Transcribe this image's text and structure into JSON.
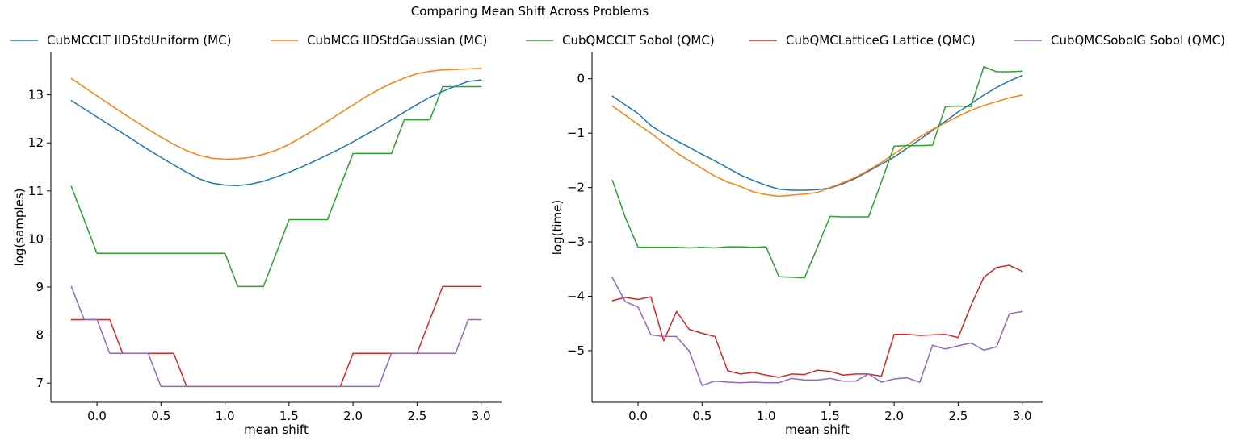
{
  "figure": {
    "suptitle": "Comparing Mean Shift Across Problems"
  },
  "legend": {
    "placement": "top",
    "entries": [
      {
        "label": "CubMCCLT IIDStdUniform (MC)",
        "color": "#1f77b4"
      },
      {
        "label": "CubMCG IIDStdGaussian (MC)",
        "color": "#ff7f0e"
      },
      {
        "label": "CubQMCCLT Sobol (QMC)",
        "color": "#2ca02c"
      },
      {
        "label": "CubQMCLatticeG Lattice (QMC)",
        "color": "#d62728"
      },
      {
        "label": "CubQMCSobolG Sobol (QMC)",
        "color": "#9467bd"
      }
    ]
  },
  "chart_data": [
    {
      "type": "line",
      "title": "",
      "xlabel": "mean shift",
      "ylabel": "log(samples)",
      "xlim": [
        -0.36,
        3.16
      ],
      "ylim": [
        6.6,
        13.9
      ],
      "xticks": [
        0.0,
        0.5,
        1.0,
        1.5,
        2.0,
        2.5,
        3.0
      ],
      "xtick_labels": [
        "0.0",
        "0.5",
        "1.0",
        "1.5",
        "2.0",
        "2.5",
        "3.0"
      ],
      "yticks": [
        7,
        8,
        9,
        10,
        11,
        12,
        13
      ],
      "ytick_labels": [
        "7",
        "8",
        "9",
        "10",
        "11",
        "12",
        "13"
      ],
      "grid": false,
      "x": [
        -0.2,
        -0.1,
        0.0,
        0.1,
        0.2,
        0.3,
        0.4,
        0.5,
        0.6,
        0.7,
        0.8,
        0.9,
        1.0,
        1.1,
        1.2,
        1.3,
        1.4,
        1.5,
        1.6,
        1.7,
        1.8,
        1.9,
        2.0,
        2.1,
        2.2,
        2.3,
        2.4,
        2.5,
        2.6,
        2.7,
        2.8,
        2.9,
        3.0
      ],
      "series": [
        {
          "name": "CubMCCLT IIDStdUniform (MC)",
          "color": "#1f77b4",
          "values": [
            12.88,
            12.71,
            12.54,
            12.37,
            12.2,
            12.03,
            11.86,
            11.7,
            11.54,
            11.39,
            11.25,
            11.16,
            11.12,
            11.11,
            11.14,
            11.2,
            11.29,
            11.39,
            11.5,
            11.62,
            11.75,
            11.88,
            12.02,
            12.17,
            12.32,
            12.48,
            12.64,
            12.8,
            12.95,
            13.07,
            13.18,
            13.28,
            13.31
          ]
        },
        {
          "name": "CubMCG IIDStdGaussian (MC)",
          "color": "#ff7f0e",
          "values": [
            13.34,
            13.16,
            12.98,
            12.8,
            12.62,
            12.45,
            12.28,
            12.12,
            11.97,
            11.84,
            11.74,
            11.68,
            11.66,
            11.67,
            11.7,
            11.76,
            11.85,
            11.97,
            12.12,
            12.28,
            12.45,
            12.62,
            12.79,
            12.96,
            13.11,
            13.24,
            13.35,
            13.44,
            13.49,
            13.52,
            13.53,
            13.54,
            13.55
          ]
        },
        {
          "name": "CubQMCCLT Sobol (QMC)",
          "color": "#2ca02c",
          "values": [
            11.09,
            10.4,
            9.7,
            9.7,
            9.7,
            9.7,
            9.7,
            9.7,
            9.7,
            9.7,
            9.7,
            9.7,
            9.7,
            9.01,
            9.01,
            9.01,
            9.7,
            10.4,
            10.4,
            10.4,
            10.4,
            11.09,
            11.78,
            11.78,
            11.78,
            11.78,
            12.48,
            12.48,
            12.48,
            13.17,
            13.17,
            13.17,
            13.17
          ]
        },
        {
          "name": "CubQMCLatticeG Lattice (QMC)",
          "color": "#d62728",
          "values": [
            8.32,
            8.32,
            8.32,
            8.32,
            7.62,
            7.62,
            7.62,
            7.62,
            7.62,
            6.93,
            6.93,
            6.93,
            6.93,
            6.93,
            6.93,
            6.93,
            6.93,
            6.93,
            6.93,
            6.93,
            6.93,
            6.93,
            7.62,
            7.62,
            7.62,
            7.62,
            7.62,
            7.62,
            8.32,
            9.01,
            9.01,
            9.01,
            9.01
          ]
        },
        {
          "name": "CubQMCSobolG Sobol (QMC)",
          "color": "#9467bd",
          "values": [
            9.01,
            8.32,
            8.32,
            7.62,
            7.62,
            7.62,
            7.62,
            6.93,
            6.93,
            6.93,
            6.93,
            6.93,
            6.93,
            6.93,
            6.93,
            6.93,
            6.93,
            6.93,
            6.93,
            6.93,
            6.93,
            6.93,
            6.93,
            6.93,
            6.93,
            7.62,
            7.62,
            7.62,
            7.62,
            7.62,
            7.62,
            8.32,
            8.32
          ]
        }
      ]
    },
    {
      "type": "line",
      "title": "",
      "xlabel": "mean shift",
      "ylabel": "log(time)",
      "xlim": [
        -0.36,
        3.16
      ],
      "ylim": [
        -5.95,
        0.5
      ],
      "xticks": [
        0.0,
        0.5,
        1.0,
        1.5,
        2.0,
        2.5,
        3.0
      ],
      "xtick_labels": [
        "0.0",
        "0.5",
        "1.0",
        "1.5",
        "2.0",
        "2.5",
        "3.0"
      ],
      "yticks": [
        -5,
        -4,
        -3,
        -2,
        -1,
        0
      ],
      "ytick_labels": [
        "−5",
        "−4",
        "−3",
        "−2",
        "−1",
        "0"
      ],
      "grid": false,
      "x": [
        -0.2,
        -0.1,
        0.0,
        0.1,
        0.2,
        0.3,
        0.4,
        0.5,
        0.6,
        0.7,
        0.8,
        0.9,
        1.0,
        1.1,
        1.2,
        1.3,
        1.4,
        1.5,
        1.6,
        1.7,
        1.8,
        1.9,
        2.0,
        2.1,
        2.2,
        2.3,
        2.4,
        2.5,
        2.6,
        2.7,
        2.8,
        2.9,
        3.0
      ],
      "series": [
        {
          "name": "CubMCCLT IIDStdUniform (MC)",
          "color": "#1f77b4",
          "values": [
            -0.32,
            -0.48,
            -0.64,
            -0.86,
            -1.01,
            -1.14,
            -1.26,
            -1.39,
            -1.51,
            -1.64,
            -1.77,
            -1.87,
            -1.96,
            -2.03,
            -2.05,
            -2.05,
            -2.04,
            -2.01,
            -1.93,
            -1.83,
            -1.7,
            -1.57,
            -1.44,
            -1.28,
            -1.12,
            -0.95,
            -0.78,
            -0.61,
            -0.46,
            -0.3,
            -0.16,
            -0.04,
            0.06
          ]
        },
        {
          "name": "CubMCG IIDStdGaussian (MC)",
          "color": "#ff7f0e",
          "values": [
            -0.5,
            -0.67,
            -0.84,
            -1.0,
            -1.18,
            -1.36,
            -1.51,
            -1.65,
            -1.79,
            -1.9,
            -1.98,
            -2.08,
            -2.13,
            -2.16,
            -2.14,
            -2.12,
            -2.09,
            -2.0,
            -1.91,
            -1.81,
            -1.68,
            -1.54,
            -1.38,
            -1.22,
            -1.07,
            -0.93,
            -0.81,
            -0.69,
            -0.58,
            -0.49,
            -0.42,
            -0.35,
            -0.3
          ]
        },
        {
          "name": "CubQMCCLT Sobol (QMC)",
          "color": "#2ca02c",
          "values": [
            -1.87,
            -2.55,
            -3.1,
            -3.1,
            -3.1,
            -3.1,
            -3.11,
            -3.1,
            -3.11,
            -3.09,
            -3.09,
            -3.1,
            -3.09,
            -3.64,
            -3.65,
            -3.66,
            -3.1,
            -2.53,
            -2.54,
            -2.54,
            -2.54,
            -1.9,
            -1.24,
            -1.23,
            -1.23,
            -1.22,
            -0.51,
            -0.5,
            -0.51,
            0.22,
            0.13,
            0.13,
            0.14
          ]
        },
        {
          "name": "CubQMCLatticeG Lattice (QMC)",
          "color": "#d62728",
          "values": [
            -4.08,
            -4.02,
            -4.06,
            -4.01,
            -4.82,
            -4.28,
            -4.61,
            -4.68,
            -4.74,
            -5.37,
            -5.43,
            -5.4,
            -5.45,
            -5.49,
            -5.43,
            -5.44,
            -5.36,
            -5.38,
            -5.45,
            -5.43,
            -5.43,
            -5.47,
            -4.7,
            -4.7,
            -4.72,
            -4.71,
            -4.7,
            -4.76,
            -4.17,
            -3.65,
            -3.47,
            -3.43,
            -3.54
          ]
        },
        {
          "name": "CubQMCSobolG Sobol (QMC)",
          "color": "#9467bd",
          "values": [
            -3.66,
            -4.1,
            -4.2,
            -4.71,
            -4.74,
            -4.74,
            -5.01,
            -5.64,
            -5.56,
            -5.58,
            -5.59,
            -5.58,
            -5.59,
            -5.59,
            -5.51,
            -5.54,
            -5.54,
            -5.51,
            -5.56,
            -5.56,
            -5.43,
            -5.58,
            -5.52,
            -5.5,
            -5.58,
            -4.9,
            -4.97,
            -4.91,
            -4.86,
            -4.99,
            -4.93,
            -4.32,
            -4.28
          ]
        }
      ]
    }
  ]
}
